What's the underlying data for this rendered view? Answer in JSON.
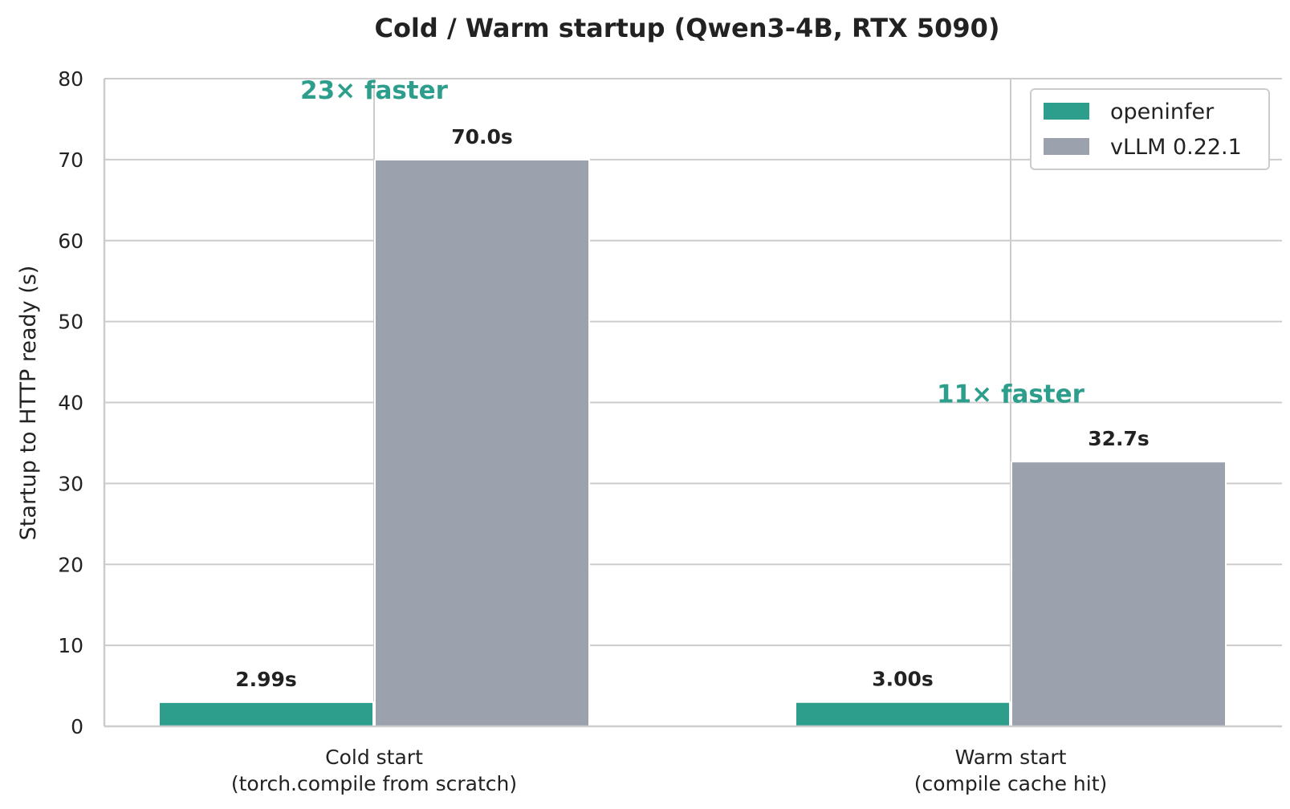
{
  "chart_data": {
    "type": "bar",
    "title": "Cold / Warm startup (Qwen3-4B, RTX 5090)",
    "xlabel": "",
    "ylabel": "Startup to HTTP ready (s)",
    "ylim": [
      0,
      80
    ],
    "yticks": [
      0,
      10,
      20,
      30,
      40,
      50,
      60,
      70,
      80
    ],
    "grid": true,
    "legend_position": "top-right",
    "categories": [
      [
        "Cold start",
        "(torch.compile from scratch)"
      ],
      [
        "Warm start",
        "(compile cache hit)"
      ]
    ],
    "series": [
      {
        "name": "openinfer",
        "color": "#2e9e8c",
        "values": [
          2.99,
          3.0
        ],
        "labels": [
          "2.99s",
          "3.00s"
        ]
      },
      {
        "name": "vLLM 0.22.1",
        "color": "#9ba2ad",
        "values": [
          70.0,
          32.7
        ],
        "labels": [
          "70.0s",
          "32.7s"
        ]
      }
    ],
    "annotations": [
      {
        "category": 0,
        "text": "23× faster",
        "y": 77.5,
        "line_from": 70.0,
        "line_to": 80,
        "color": "#2e9e8c"
      },
      {
        "category": 1,
        "text": "11× faster",
        "y": 40.0,
        "line_from": 32.7,
        "line_to": 80,
        "color": "#2e9e8c"
      }
    ]
  }
}
